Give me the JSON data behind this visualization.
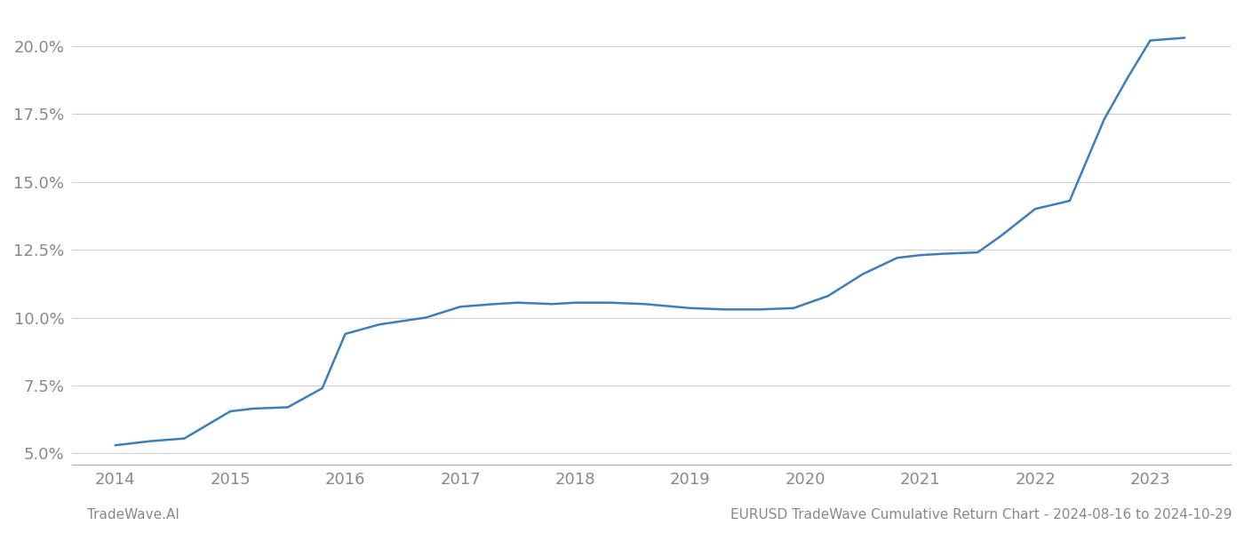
{
  "x_years": [
    2014.0,
    2014.3,
    2014.6,
    2015.0,
    2015.2,
    2015.5,
    2015.8,
    2016.0,
    2016.3,
    2016.7,
    2017.0,
    2017.3,
    2017.5,
    2017.8,
    2018.0,
    2018.3,
    2018.6,
    2019.0,
    2019.3,
    2019.6,
    2019.9,
    2020.2,
    2020.5,
    2020.8,
    2021.0,
    2021.2,
    2021.5,
    2021.7,
    2022.0,
    2022.3,
    2022.6,
    2022.8,
    2023.0,
    2023.3
  ],
  "y_values": [
    5.3,
    5.45,
    5.55,
    6.55,
    6.65,
    6.7,
    7.4,
    9.4,
    9.75,
    10.0,
    10.4,
    10.5,
    10.55,
    10.5,
    10.55,
    10.55,
    10.5,
    10.35,
    10.3,
    10.3,
    10.35,
    10.8,
    11.6,
    12.2,
    12.3,
    12.35,
    12.4,
    13.0,
    14.0,
    14.3,
    17.3,
    18.8,
    20.2,
    20.3
  ],
  "line_color": "#3a7ebf",
  "background_color": "#ffffff",
  "grid_color": "#d0d0d0",
  "footer_left": "TradeWave.AI",
  "footer_right": "EURUSD TradeWave Cumulative Return Chart - 2024-08-16 to 2024-10-29",
  "x_ticks": [
    2014,
    2015,
    2016,
    2017,
    2018,
    2019,
    2020,
    2021,
    2022,
    2023
  ],
  "y_ticks": [
    5.0,
    7.5,
    10.0,
    12.5,
    15.0,
    17.5,
    20.0
  ],
  "ylim": [
    4.6,
    21.2
  ],
  "xlim": [
    2013.62,
    2023.7
  ],
  "tick_label_color": "#888888",
  "footer_color": "#888888",
  "line_width": 1.8,
  "tick_fontsize": 13,
  "footer_fontsize": 11
}
